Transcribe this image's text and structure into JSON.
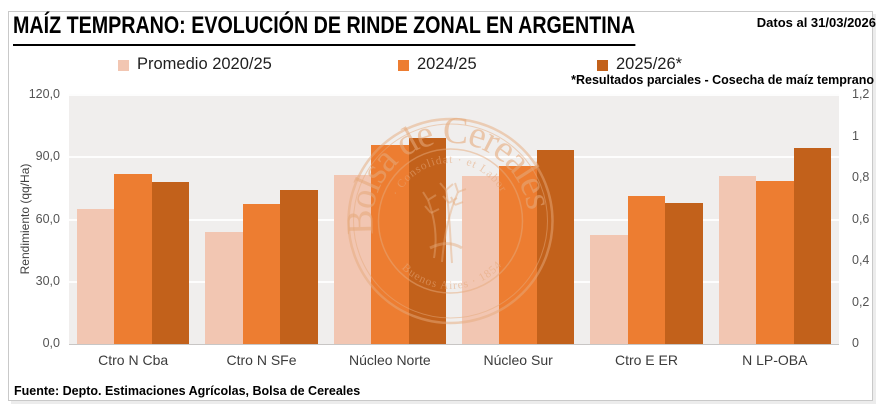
{
  "title": "MAÍZ TEMPRANO: EVOLUCIÓN DE RINDE ZONAL EN ARGENTINA",
  "date_note": "Datos al 31/03/2026",
  "footnote": "*Resultados parciales - Cosecha de maíz temprano",
  "source": "Fuente: Depto. Estimaciones Agrícolas, Bolsa de Cereales",
  "watermark": {
    "text": "Bolsa de Cereales",
    "motto_top": "· Consolidat · et Labor ·",
    "motto_bottom": "Buenos Aires · 1854"
  },
  "chart_data": {
    "type": "bar",
    "title": "MAÍZ TEMPRANO: EVOLUCIÓN DE RINDE ZONAL EN ARGENTINA",
    "categories": [
      "Ctro N Cba",
      "Ctro N SFe",
      "Núcleo Norte",
      "Núcleo Sur",
      "Ctro E ER",
      "N LP-OBA"
    ],
    "series": [
      {
        "name": "Promedio 2020/25",
        "color": "#F2C6B2",
        "values": [
          65,
          54,
          81.5,
          81,
          52.5,
          81
        ]
      },
      {
        "name": "2024/25",
        "color": "#ED7D31",
        "values": [
          82,
          67.5,
          96,
          86,
          71.5,
          78.5
        ]
      },
      {
        "name": "2025/26*",
        "color": "#C2611B",
        "values": [
          78,
          74,
          99.5,
          93.5,
          68,
          94.5
        ]
      }
    ],
    "ylabel": "Rendimiento (qq/Ha)",
    "ylim": [
      0,
      120
    ],
    "yticks": [
      "120,0",
      "90,0",
      "60,0",
      "30,0",
      "0,0"
    ],
    "y2lim": [
      0,
      1.2
    ],
    "y2ticks": [
      "1,2",
      "1",
      "0,8",
      "0,6",
      "0,4",
      "0,2",
      "0"
    ],
    "grid": true,
    "legend_position": "top",
    "plot_bg": "#f0eeed"
  }
}
